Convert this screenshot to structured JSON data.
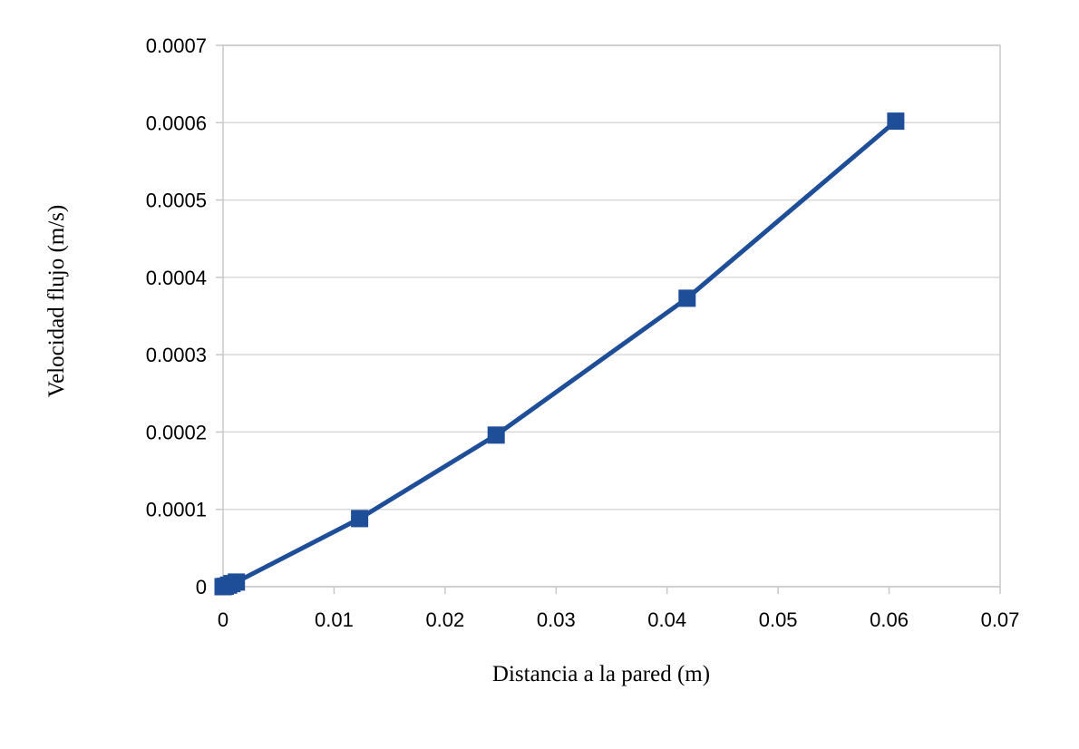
{
  "chart_data": {
    "type": "line",
    "title": "",
    "xlabel": "Distancia a la pared (m)",
    "ylabel": "Velocidad flujo (m/s)",
    "xlim": [
      0,
      0.07
    ],
    "ylim": [
      0,
      0.0007
    ],
    "x_ticks": [
      "0",
      "0.01",
      "0.02",
      "0.03",
      "0.04",
      "0.05",
      "0.06",
      "0.07"
    ],
    "y_ticks": [
      "0",
      "0.0001",
      "0.0002",
      "0.0003",
      "0.0004",
      "0.0005",
      "0.0006",
      "0.0007"
    ],
    "grid": true,
    "legend": "none",
    "series": [
      {
        "color": "#1f4e99",
        "marker": "square",
        "x": [
          0,
          0.0002,
          0.0005,
          0.0008,
          0.0012,
          0.0123,
          0.0246,
          0.0418,
          0.0606
        ],
        "y": [
          0,
          5e-07,
          2e-06,
          4e-06,
          6e-06,
          8.8e-05,
          0.000196,
          0.000373,
          0.000602
        ]
      }
    ]
  }
}
